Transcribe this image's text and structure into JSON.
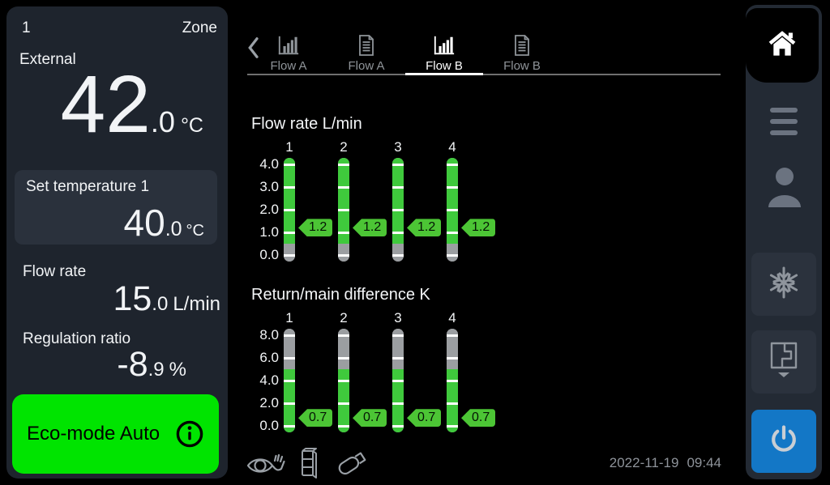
{
  "zone_panel": {
    "zone_number": "1",
    "zone_label": "Zone",
    "external": {
      "label": "External",
      "value_int": "42",
      "value_dec": ".0",
      "unit": "°C"
    },
    "set_temperature": {
      "label": "Set temperature 1",
      "value_int": "40",
      "value_dec": ".0",
      "unit": "°C"
    },
    "flow_rate": {
      "label": "Flow rate",
      "value_int": "15",
      "value_dec": ".0",
      "unit": "L/min"
    },
    "regulation_ratio": {
      "label": "Regulation ratio",
      "value_int": "-8",
      "value_dec": ".9",
      "unit": "%"
    },
    "eco_mode": {
      "label": "Eco-mode Auto",
      "info_icon": "info-icon"
    }
  },
  "tab_bar": {
    "back_icon": "chevron-left-icon",
    "tabs": [
      {
        "label": "Flow A",
        "icon": "bar-chart-icon",
        "active": false
      },
      {
        "label": "Flow A",
        "icon": "document-icon",
        "active": false
      },
      {
        "label": "Flow B",
        "icon": "bar-chart-icon",
        "active": true
      },
      {
        "label": "Flow B",
        "icon": "document-icon",
        "active": false
      }
    ]
  },
  "chart_data": [
    {
      "type": "bar",
      "title": "Flow rate L/min",
      "categories": [
        "1",
        "2",
        "3",
        "4"
      ],
      "values": [
        1.2,
        1.2,
        1.2,
        1.2
      ],
      "value_labels": [
        "1.2",
        "1.2",
        "1.2",
        "1.2"
      ],
      "ticks": [
        4.0,
        3.0,
        2.0,
        1.0,
        0.0
      ],
      "tick_labels": [
        "4.0",
        "3.0",
        "2.0",
        "1.0",
        "0.0"
      ],
      "ylim": [
        0.0,
        4.0
      ],
      "segments": [
        {
          "color": "gray",
          "upto": 0.5
        },
        {
          "color": "green"
        }
      ],
      "grid": false,
      "legend": false
    },
    {
      "type": "bar",
      "title": "Return/main difference K",
      "categories": [
        "1",
        "2",
        "3",
        "4"
      ],
      "values": [
        0.7,
        0.7,
        0.7,
        0.7
      ],
      "value_labels": [
        "0.7",
        "0.7",
        "0.7",
        "0.7"
      ],
      "ticks": [
        8.0,
        6.0,
        4.0,
        2.0,
        0.0
      ],
      "tick_labels": [
        "8.0",
        "6.0",
        "4.0",
        "2.0",
        "0.0"
      ],
      "ylim": [
        0.0,
        8.0
      ],
      "segments": [
        {
          "color": "green",
          "upto": 5.0
        },
        {
          "color": "gray"
        }
      ],
      "grid": false,
      "legend": false
    }
  ],
  "footer": {
    "date": "2022-11-19",
    "time": "09:44",
    "status_icons": [
      "supervision-eye-hand-icon",
      "module-icon",
      "usb-stick-icon"
    ]
  },
  "sidebar": {
    "items": [
      {
        "name": "home",
        "icon": "home-icon",
        "active": true
      },
      {
        "name": "menu",
        "icon": "menu-icon",
        "active": false
      },
      {
        "name": "user",
        "icon": "user-icon",
        "active": false
      },
      {
        "name": "defrost",
        "icon": "snowflake-icon",
        "active": false
      },
      {
        "name": "zones",
        "icon": "zones-dropdown-icon",
        "active": false
      },
      {
        "name": "power",
        "icon": "power-icon",
        "active": false
      }
    ]
  },
  "colors": {
    "eco_green": "#00e400",
    "gauge_green": "#3fc93c",
    "gauge_gray": "#9b9ea1",
    "tag_green": "#4cc535",
    "power_blue": "#1377c6"
  }
}
